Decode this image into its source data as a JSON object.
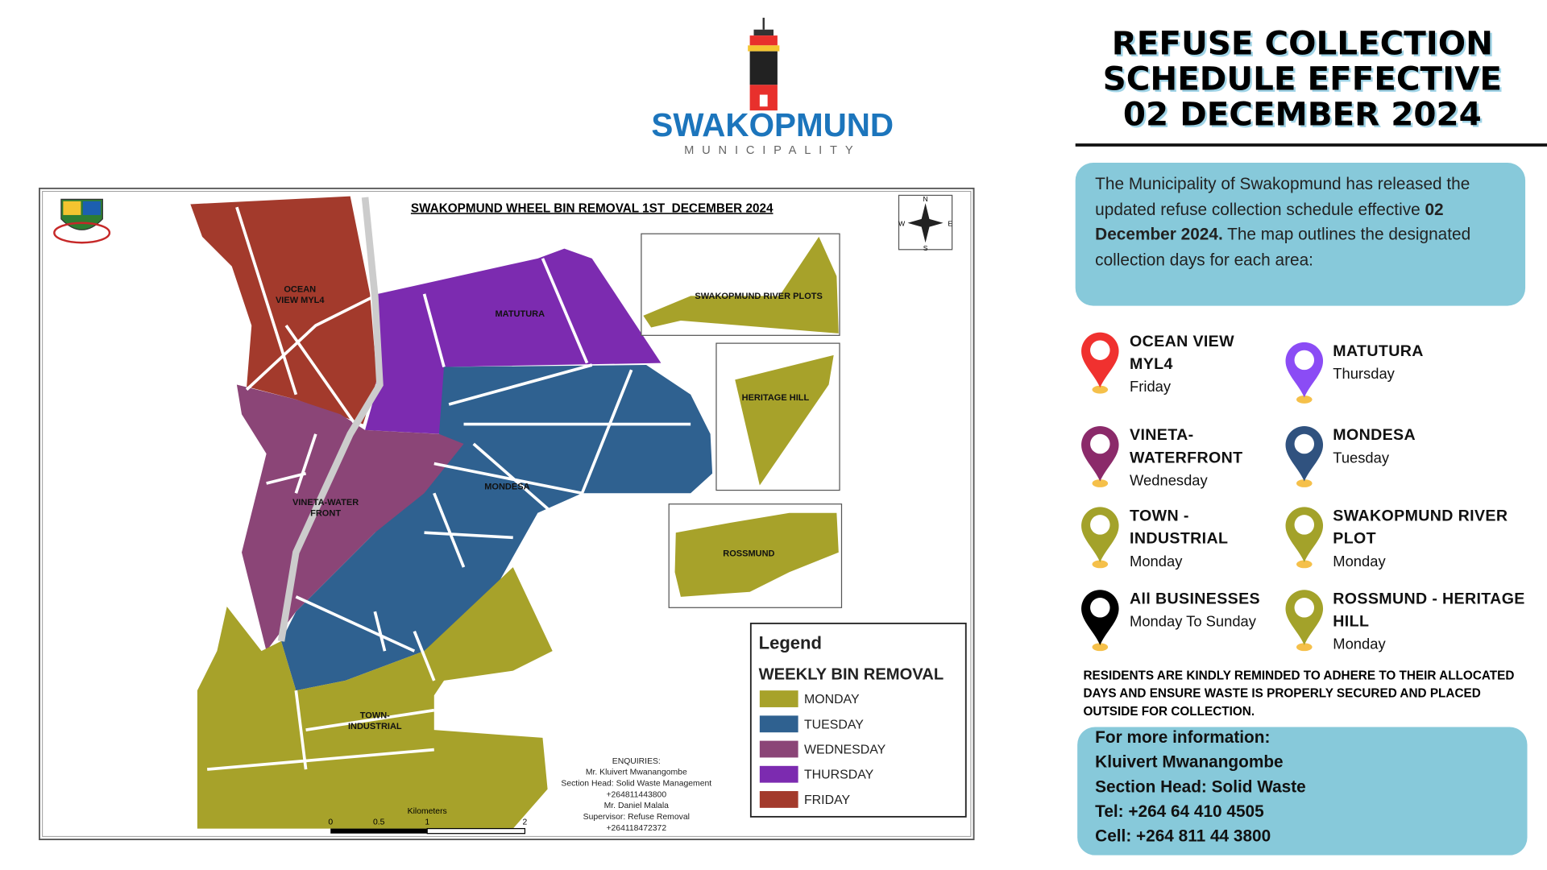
{
  "logo": {
    "name": "SWAKOPMUND",
    "subtitle": "MUNICIPALITY"
  },
  "header": {
    "title_lines": [
      "REFUSE COLLECTION",
      "SCHEDULE EFFECTIVE",
      "02 DECEMBER 2024"
    ]
  },
  "intro": {
    "text_before": "The Municipality of Swakopmund has released the updated refuse collection schedule effective ",
    "bold": "02 December 2024.",
    "text_after": " The map outlines the designated collection days for each area:"
  },
  "schedule": [
    {
      "area": "OCEAN VIEW MYL4",
      "day": "Friday",
      "color": "#f0312f"
    },
    {
      "area": "MATUTURA",
      "day": "Thursday",
      "color": "#8b4cf5"
    },
    {
      "area": "VINETA-WATERFRONT",
      "day": "Wednesday",
      "color": "#8b2a6a"
    },
    {
      "area": "MONDESA",
      "day": "Tuesday",
      "color": "#30527f"
    },
    {
      "area": "TOWN - INDUSTRIAL",
      "day": "Monday",
      "color": "#a3a22a"
    },
    {
      "area": "SWAKOPMUND RIVER PLOT",
      "day": "Monday",
      "color": "#a3a22a"
    },
    {
      "area": "All BUSINESSES",
      "day": "Monday To Sunday",
      "color": "#000000"
    },
    {
      "area": "ROSSMUND - HERITAGE HILL",
      "day": "Monday",
      "color": "#a3a22a"
    }
  ],
  "reminder": "RESIDENTS ARE KINDLY REMINDED TO ADHERE TO THEIR ALLOCATED DAYS AND ENSURE WASTE IS PROPERLY SECURED AND PLACED OUTSIDE FOR COLLECTION.",
  "contact": [
    "For more information:",
    "Kluivert Mwanangombe",
    "Section Head: Solid Waste",
    "Tel: +264 64 410 4505",
    "Cell: +264 811 44 3800"
  ],
  "map": {
    "title": "SWAKOPMUND WHEEL BIN REMOVAL 1ST  DECEMBER 2024",
    "areas": [
      {
        "lines": [
          "OCEAN",
          "VIEW MYL4"
        ]
      },
      {
        "lines": [
          "MATUTURA"
        ]
      },
      {
        "lines": [
          "MONDESA"
        ]
      },
      {
        "lines": [
          "VINETA-WATER",
          "FRONT"
        ]
      },
      {
        "lines": [
          "TOWN-",
          "INDUSTRIAL"
        ]
      },
      {
        "lines": [
          "SWAKOPMUND RIVER PLOTS"
        ]
      },
      {
        "lines": [
          "HERITAGE HILL"
        ]
      },
      {
        "lines": [
          "ROSSMUND"
        ]
      }
    ],
    "compass": [
      "N",
      "E",
      "S",
      "W"
    ],
    "legend": {
      "title": "Legend",
      "subtitle": "WEEKLY BIN REMOVAL",
      "items": [
        {
          "label": "MONDAY",
          "color": "#a7a22a"
        },
        {
          "label": "TUESDAY",
          "color": "#2f6190"
        },
        {
          "label": "WEDNESDAY",
          "color": "#8b4577"
        },
        {
          "label": "THURSDAY",
          "color": "#7c2bb0"
        },
        {
          "label": "FRIDAY",
          "color": "#a33a2c"
        }
      ]
    },
    "enquiries": [
      "ENQUIRIES:",
      "Mr. Kluivert Mwanangombe",
      "Section Head: Solid Waste Management",
      "+264811443800",
      "Mr. Daniel Malala",
      "Supervisor: Refuse Removal",
      "+264118472372"
    ],
    "scale": {
      "title": "Kilometers",
      "ticks": [
        "0",
        "0.5",
        "1",
        "2"
      ]
    }
  }
}
